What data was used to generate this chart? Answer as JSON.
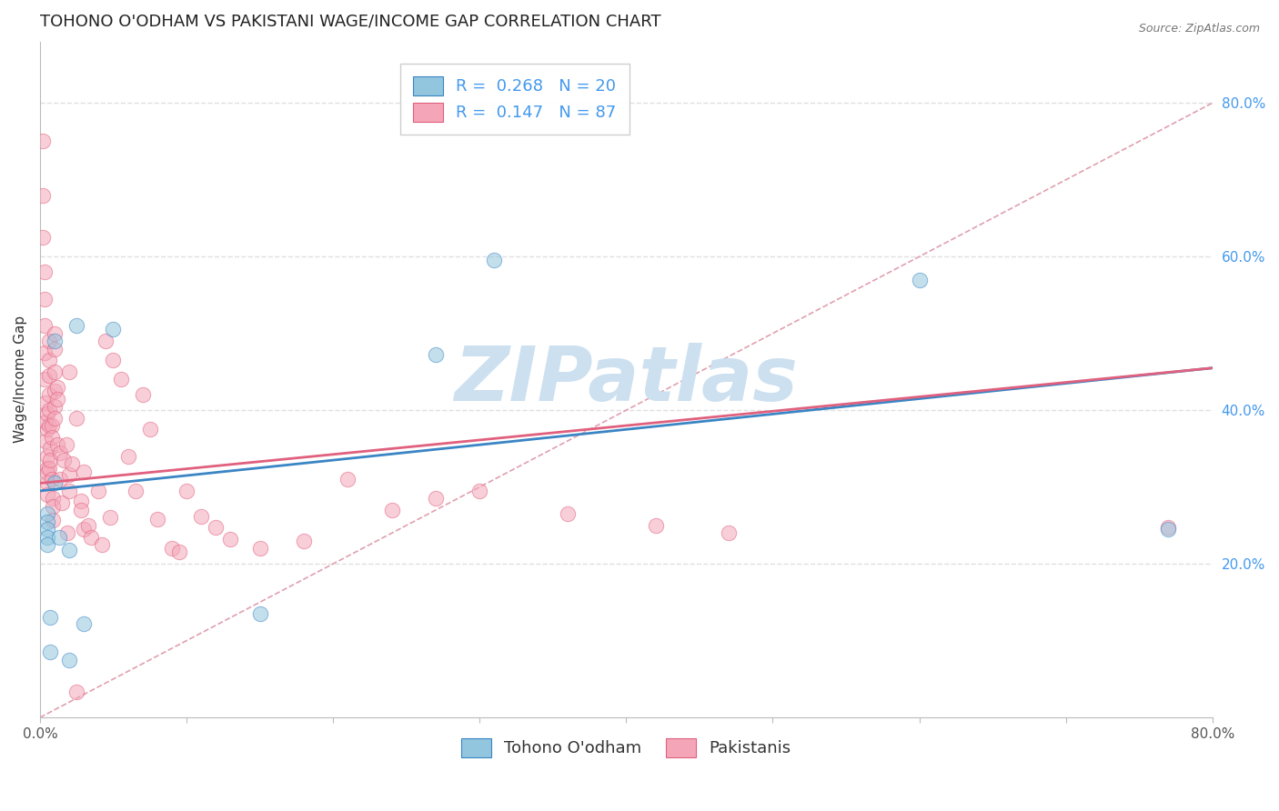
{
  "title": "TOHONO O'ODHAM VS PAKISTANI WAGE/INCOME GAP CORRELATION CHART",
  "source": "Source: ZipAtlas.com",
  "ylabel": "Wage/Income Gap",
  "xlim": [
    0.0,
    0.8
  ],
  "ylim": [
    0.0,
    0.88
  ],
  "ytick_labels": [
    "20.0%",
    "40.0%",
    "60.0%",
    "80.0%"
  ],
  "ytick_vals": [
    0.2,
    0.4,
    0.6,
    0.8
  ],
  "blue_color": "#92c5de",
  "pink_color": "#f4a6b8",
  "blue_edge": "#3a85c4",
  "pink_edge": "#e0607e",
  "legend_blue_R": "0.268",
  "legend_blue_N": "20",
  "legend_pink_R": "0.147",
  "legend_pink_N": "87",
  "blue_scatter_x": [
    0.005,
    0.005,
    0.005,
    0.005,
    0.005,
    0.007,
    0.007,
    0.01,
    0.01,
    0.013,
    0.02,
    0.02,
    0.025,
    0.03,
    0.05,
    0.15,
    0.27,
    0.31,
    0.6,
    0.77
  ],
  "blue_scatter_y": [
    0.265,
    0.255,
    0.245,
    0.235,
    0.225,
    0.13,
    0.085,
    0.305,
    0.49,
    0.235,
    0.075,
    0.218,
    0.51,
    0.122,
    0.505,
    0.135,
    0.472,
    0.595,
    0.57,
    0.245
  ],
  "pink_scatter_x": [
    0.002,
    0.002,
    0.002,
    0.003,
    0.003,
    0.003,
    0.003,
    0.003,
    0.004,
    0.004,
    0.004,
    0.005,
    0.005,
    0.005,
    0.005,
    0.005,
    0.005,
    0.005,
    0.006,
    0.006,
    0.006,
    0.006,
    0.006,
    0.006,
    0.006,
    0.007,
    0.007,
    0.008,
    0.008,
    0.008,
    0.009,
    0.009,
    0.009,
    0.01,
    0.01,
    0.01,
    0.01,
    0.01,
    0.01,
    0.012,
    0.012,
    0.012,
    0.014,
    0.014,
    0.015,
    0.016,
    0.018,
    0.019,
    0.02,
    0.02,
    0.02,
    0.022,
    0.025,
    0.028,
    0.028,
    0.03,
    0.03,
    0.033,
    0.035,
    0.04,
    0.042,
    0.045,
    0.048,
    0.05,
    0.055,
    0.06,
    0.065,
    0.07,
    0.075,
    0.08,
    0.09,
    0.095,
    0.1,
    0.11,
    0.12,
    0.13,
    0.15,
    0.18,
    0.21,
    0.24,
    0.27,
    0.3,
    0.36,
    0.42,
    0.47,
    0.77,
    0.025
  ],
  "pink_scatter_y": [
    0.75,
    0.68,
    0.625,
    0.58,
    0.545,
    0.51,
    0.475,
    0.44,
    0.41,
    0.385,
    0.36,
    0.34,
    0.325,
    0.318,
    0.305,
    0.395,
    0.375,
    0.29,
    0.49,
    0.465,
    0.445,
    0.42,
    0.4,
    0.38,
    0.325,
    0.35,
    0.335,
    0.31,
    0.38,
    0.365,
    0.285,
    0.275,
    0.257,
    0.45,
    0.425,
    0.5,
    0.405,
    0.39,
    0.48,
    0.43,
    0.415,
    0.355,
    0.345,
    0.31,
    0.28,
    0.335,
    0.355,
    0.24,
    0.295,
    0.316,
    0.45,
    0.33,
    0.39,
    0.282,
    0.27,
    0.245,
    0.32,
    0.25,
    0.235,
    0.295,
    0.225,
    0.49,
    0.26,
    0.465,
    0.44,
    0.34,
    0.295,
    0.42,
    0.375,
    0.258,
    0.22,
    0.215,
    0.295,
    0.262,
    0.248,
    0.232,
    0.22,
    0.23,
    0.31,
    0.27,
    0.285,
    0.295,
    0.265,
    0.25,
    0.24,
    0.248,
    0.033
  ],
  "blue_line_x": [
    0.0,
    0.8
  ],
  "blue_line_y_start": 0.295,
  "blue_line_y_end": 0.455,
  "pink_line_x": [
    0.0,
    0.8
  ],
  "pink_line_y_start": 0.305,
  "pink_line_y_end": 0.455,
  "diag_line_color": "#e0a0b0",
  "watermark": "ZIPatlas",
  "watermark_color": "#cce0f0",
  "background_color": "#ffffff",
  "grid_color": "#e0e0e0",
  "title_fontsize": 13,
  "axis_label_fontsize": 11,
  "tick_fontsize": 11,
  "legend_fontsize": 13,
  "marker_size": 140,
  "marker_alpha": 0.55
}
